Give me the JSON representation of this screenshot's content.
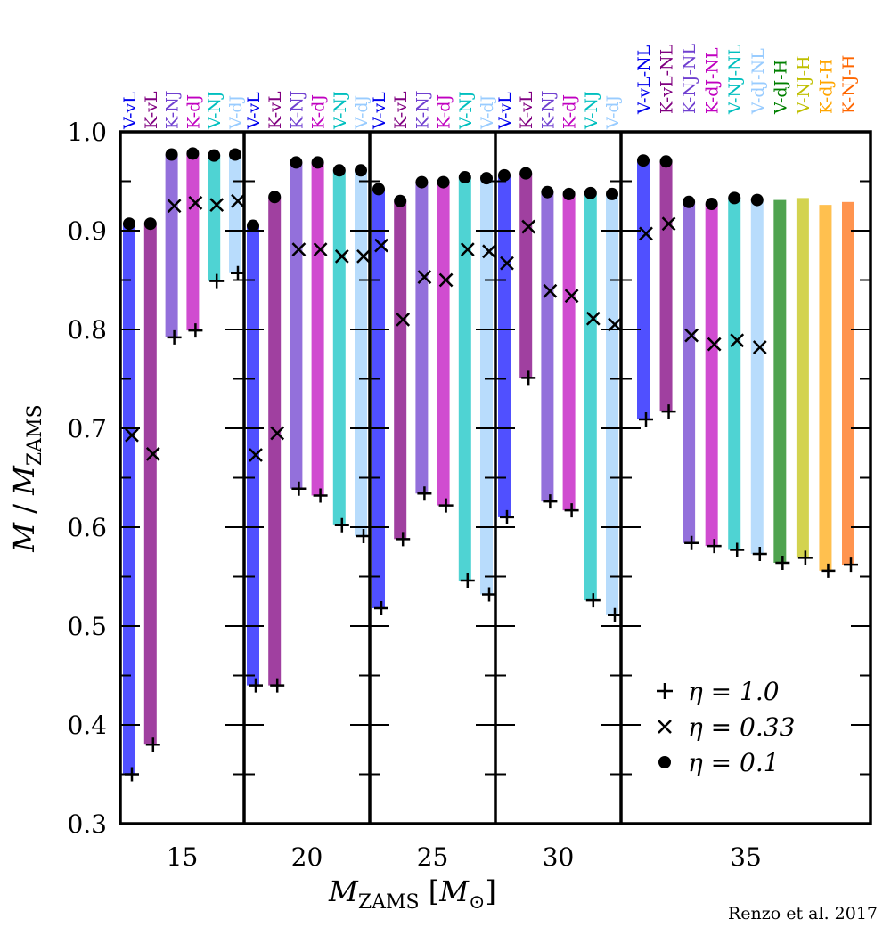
{
  "chart_data": {
    "type": "bar",
    "ylabel": "M / M_ZAMS",
    "xlabel": "M_ZAMS [M_⊙]",
    "ylim": [
      0.3,
      1.0
    ],
    "yticks": [
      "0.3",
      "0.4",
      "0.5",
      "0.6",
      "0.7",
      "0.8",
      "0.9",
      "1.0"
    ],
    "grid": false,
    "legend_placement": "lower-right",
    "legend": [
      {
        "marker": "plus",
        "label": "η = 1.0"
      },
      {
        "marker": "cross",
        "label": "η = 0.33"
      },
      {
        "marker": "dot",
        "label": "η = 0.1"
      }
    ],
    "credit": "Renzo et al. 2017",
    "colors": {
      "V-vL": {
        "bar": "#5050ff",
        "label": "#0000ee"
      },
      "K-vL": {
        "bar": "#a040a0",
        "label": "#800080"
      },
      "K-NJ": {
        "bar": "#9370db",
        "label": "#7040d0"
      },
      "K-dJ": {
        "bar": "#d04cd0",
        "label": "#c000c0"
      },
      "V-NJ": {
        "bar": "#4fd3d3",
        "label": "#00bfbf"
      },
      "V-dJ": {
        "bar": "#b8dcfc",
        "label": "#99ccff"
      },
      "V-dJ-H": {
        "bar": "#4fa34f",
        "label": "#008000"
      },
      "V-NJ-H": {
        "bar": "#d3d34f",
        "label": "#bfbf00"
      },
      "K-dJ-H": {
        "bar": "#ffc04f",
        "label": "#ffa500"
      },
      "K-NJ-H": {
        "bar": "#ff944f",
        "label": "#ff6600"
      }
    },
    "panels": [
      {
        "x_tick": "15",
        "runs": [
          {
            "name": "V-vL",
            "eta_1_0": 0.35,
            "eta_0_33": 0.693,
            "eta_0_1": 0.907
          },
          {
            "name": "K-vL",
            "eta_1_0": 0.38,
            "eta_0_33": 0.674,
            "eta_0_1": 0.907
          },
          {
            "name": "K-NJ",
            "eta_1_0": 0.792,
            "eta_0_33": 0.925,
            "eta_0_1": 0.977
          },
          {
            "name": "K-dJ",
            "eta_1_0": 0.799,
            "eta_0_33": 0.928,
            "eta_0_1": 0.978
          },
          {
            "name": "V-NJ",
            "eta_1_0": 0.849,
            "eta_0_33": 0.926,
            "eta_0_1": 0.976
          },
          {
            "name": "V-dJ",
            "eta_1_0": 0.857,
            "eta_0_33": 0.93,
            "eta_0_1": 0.977
          }
        ]
      },
      {
        "x_tick": "20",
        "runs": [
          {
            "name": "V-vL",
            "eta_1_0": 0.44,
            "eta_0_33": 0.673,
            "eta_0_1": 0.905
          },
          {
            "name": "K-vL",
            "eta_1_0": 0.44,
            "eta_0_33": 0.695,
            "eta_0_1": 0.934
          },
          {
            "name": "K-NJ",
            "eta_1_0": 0.639,
            "eta_0_33": 0.881,
            "eta_0_1": 0.969
          },
          {
            "name": "K-dJ",
            "eta_1_0": 0.632,
            "eta_0_33": 0.881,
            "eta_0_1": 0.969
          },
          {
            "name": "V-NJ",
            "eta_1_0": 0.602,
            "eta_0_33": 0.874,
            "eta_0_1": 0.961
          },
          {
            "name": "V-dJ",
            "eta_1_0": 0.591,
            "eta_0_33": 0.874,
            "eta_0_1": 0.961
          }
        ]
      },
      {
        "x_tick": "25",
        "runs": [
          {
            "name": "V-vL",
            "eta_1_0": 0.518,
            "eta_0_33": 0.885,
            "eta_0_1": 0.942
          },
          {
            "name": "K-vL",
            "eta_1_0": 0.588,
            "eta_0_33": 0.81,
            "eta_0_1": 0.93
          },
          {
            "name": "K-NJ",
            "eta_1_0": 0.634,
            "eta_0_33": 0.853,
            "eta_0_1": 0.949
          },
          {
            "name": "K-dJ",
            "eta_1_0": 0.622,
            "eta_0_33": 0.85,
            "eta_0_1": 0.949
          },
          {
            "name": "V-NJ",
            "eta_1_0": 0.546,
            "eta_0_33": 0.881,
            "eta_0_1": 0.954
          },
          {
            "name": "V-dJ",
            "eta_1_0": 0.532,
            "eta_0_33": 0.879,
            "eta_0_1": 0.953
          }
        ]
      },
      {
        "x_tick": "30",
        "runs": [
          {
            "name": "V-vL",
            "eta_1_0": 0.61,
            "eta_0_33": 0.867,
            "eta_0_1": 0.956
          },
          {
            "name": "K-vL",
            "eta_1_0": 0.751,
            "eta_0_33": 0.904,
            "eta_0_1": 0.958
          },
          {
            "name": "K-NJ",
            "eta_1_0": 0.626,
            "eta_0_33": 0.839,
            "eta_0_1": 0.939
          },
          {
            "name": "K-dJ",
            "eta_1_0": 0.617,
            "eta_0_33": 0.834,
            "eta_0_1": 0.937
          },
          {
            "name": "V-NJ",
            "eta_1_0": 0.526,
            "eta_0_33": 0.811,
            "eta_0_1": 0.938
          },
          {
            "name": "V-dJ",
            "eta_1_0": 0.511,
            "eta_0_33": 0.805,
            "eta_0_1": 0.937
          }
        ]
      },
      {
        "x_tick": "35",
        "runs": [
          {
            "name": "V-vL-NL",
            "color": "V-vL",
            "eta_1_0": 0.709,
            "eta_0_33": 0.897,
            "eta_0_1": 0.971
          },
          {
            "name": "K-vL-NL",
            "color": "K-vL",
            "eta_1_0": 0.717,
            "eta_0_33": 0.907,
            "eta_0_1": 0.97
          },
          {
            "name": "K-NJ-NL",
            "color": "K-NJ",
            "eta_1_0": 0.584,
            "eta_0_33": 0.794,
            "eta_0_1": 0.929
          },
          {
            "name": "K-dJ-NL",
            "color": "K-dJ",
            "eta_1_0": 0.581,
            "eta_0_33": 0.785,
            "eta_0_1": 0.927
          },
          {
            "name": "V-NJ-NL",
            "color": "V-NJ",
            "eta_1_0": 0.577,
            "eta_0_33": 0.789,
            "eta_0_1": 0.933
          },
          {
            "name": "V-dJ-NL",
            "color": "V-dJ",
            "eta_1_0": 0.573,
            "eta_0_33": 0.782,
            "eta_0_1": 0.931
          },
          {
            "name": "V-dJ-H",
            "color": "V-dJ-H",
            "eta_1_0": 0.564,
            "bar_top": 0.931
          },
          {
            "name": "V-NJ-H",
            "color": "V-NJ-H",
            "eta_1_0": 0.569,
            "bar_top": 0.933
          },
          {
            "name": "K-dJ-H",
            "color": "K-dJ-H",
            "eta_1_0": 0.556,
            "bar_top": 0.926
          },
          {
            "name": "K-NJ-H",
            "color": "K-NJ-H",
            "eta_1_0": 0.562,
            "bar_top": 0.929
          }
        ]
      }
    ]
  }
}
